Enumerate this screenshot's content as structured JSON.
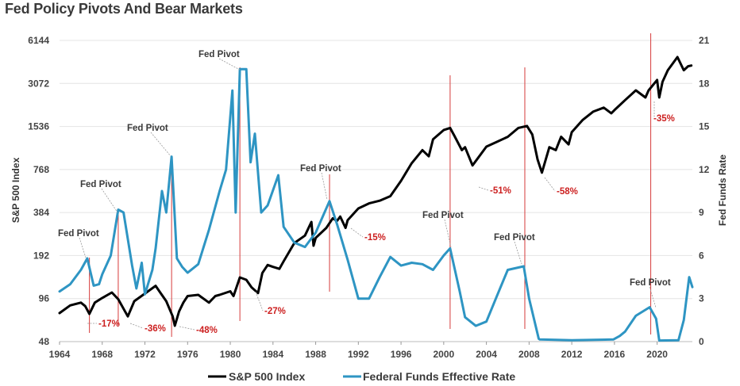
{
  "chart_data": {
    "type": "line",
    "title": "Fed Policy Pivots And Bear Markets",
    "ylabel_left": "S&P 500 Index",
    "ylabel_right": "Fed Funds Rate",
    "x_ticks": [
      "1964",
      "1968",
      "1972",
      "1976",
      "1980",
      "1984",
      "1988",
      "1992",
      "1996",
      "2000",
      "2004",
      "2008",
      "2012",
      "2016",
      "2020"
    ],
    "xlim": [
      1964,
      2023.3
    ],
    "left_ticks": [
      "48",
      "96",
      "192",
      "384",
      "768",
      "1536",
      "3072",
      "6144"
    ],
    "left_scale": "log2",
    "left_range": [
      48,
      6144
    ],
    "right_ticks": [
      "0",
      "3",
      "6",
      "9",
      "12",
      "15",
      "18",
      "21"
    ],
    "right_range": [
      0,
      21
    ],
    "legend": [
      "S&P 500 Index",
      "Federal Funds Effective Rate"
    ],
    "colors": {
      "sp500": "#000000",
      "fed_funds": "#2e95c3",
      "pivot_line": "#d63b3b",
      "pct_text": "#cc1f1f"
    },
    "series": [
      {
        "name": "S&P 500 Index",
        "axis": "left",
        "points": [
          [
            1964,
            76
          ],
          [
            1965,
            86
          ],
          [
            1966,
            90
          ],
          [
            1966.4,
            85
          ],
          [
            1966.8,
            75
          ],
          [
            1967.3,
            90
          ],
          [
            1968,
            97
          ],
          [
            1968.9,
            106
          ],
          [
            1969.5,
            95
          ],
          [
            1970.4,
            72
          ],
          [
            1971,
            92
          ],
          [
            1972,
            104
          ],
          [
            1973,
            118
          ],
          [
            1973.5,
            104
          ],
          [
            1974,
            92
          ],
          [
            1974.6,
            72
          ],
          [
            1974.8,
            62
          ],
          [
            1975.2,
            78
          ],
          [
            1975.6,
            90
          ],
          [
            1976,
            100
          ],
          [
            1977,
            102
          ],
          [
            1978,
            90
          ],
          [
            1978.6,
            100
          ],
          [
            1979,
            102
          ],
          [
            1980,
            108
          ],
          [
            1980.3,
            100
          ],
          [
            1980.9,
            135
          ],
          [
            1981.5,
            130
          ],
          [
            1982,
            115
          ],
          [
            1982.6,
            105
          ],
          [
            1983,
            145
          ],
          [
            1983.5,
            165
          ],
          [
            1984,
            160
          ],
          [
            1984.6,
            155
          ],
          [
            1985,
            175
          ],
          [
            1986,
            235
          ],
          [
            1987,
            265
          ],
          [
            1987.6,
            330
          ],
          [
            1987.8,
            225
          ],
          [
            1988,
            255
          ],
          [
            1989,
            300
          ],
          [
            1989.6,
            350
          ],
          [
            1990,
            335
          ],
          [
            1990.3,
            360
          ],
          [
            1990.8,
            300
          ],
          [
            1991,
            340
          ],
          [
            1992,
            410
          ],
          [
            1993,
            445
          ],
          [
            1994,
            465
          ],
          [
            1995,
            500
          ],
          [
            1996,
            640
          ],
          [
            1997,
            850
          ],
          [
            1998,
            1050
          ],
          [
            1998.6,
            950
          ],
          [
            1999,
            1250
          ],
          [
            2000,
            1450
          ],
          [
            2000.6,
            1500
          ],
          [
            2001,
            1320
          ],
          [
            2001.7,
            1050
          ],
          [
            2002,
            1100
          ],
          [
            2002.7,
            820
          ],
          [
            2003,
            880
          ],
          [
            2004,
            1110
          ],
          [
            2005,
            1200
          ],
          [
            2006,
            1300
          ],
          [
            2007,
            1500
          ],
          [
            2007.8,
            1550
          ],
          [
            2008.3,
            1350
          ],
          [
            2008.8,
            900
          ],
          [
            2009.2,
            730
          ],
          [
            2009.9,
            1100
          ],
          [
            2010.5,
            1050
          ],
          [
            2011,
            1300
          ],
          [
            2011.7,
            1150
          ],
          [
            2012,
            1400
          ],
          [
            2013,
            1700
          ],
          [
            2014,
            1950
          ],
          [
            2015,
            2080
          ],
          [
            2015.7,
            1900
          ],
          [
            2016,
            2000
          ],
          [
            2017,
            2350
          ],
          [
            2018,
            2750
          ],
          [
            2018.9,
            2450
          ],
          [
            2019.2,
            2750
          ],
          [
            2020,
            3250
          ],
          [
            2020.2,
            2450
          ],
          [
            2020.5,
            3150
          ],
          [
            2021,
            3800
          ],
          [
            2021.9,
            4700
          ],
          [
            2022.5,
            3800
          ],
          [
            2022.9,
            4050
          ],
          [
            2023.2,
            4100
          ]
        ]
      },
      {
        "name": "Federal Funds Effective Rate",
        "axis": "right",
        "points": [
          [
            1964,
            3.5
          ],
          [
            1965,
            4.0
          ],
          [
            1966,
            5.0
          ],
          [
            1966.6,
            5.8
          ],
          [
            1967.2,
            3.9
          ],
          [
            1967.7,
            4.0
          ],
          [
            1968,
            4.7
          ],
          [
            1968.8,
            6.0
          ],
          [
            1969.5,
            9.2
          ],
          [
            1970,
            9.0
          ],
          [
            1970.8,
            5.3
          ],
          [
            1971.2,
            3.7
          ],
          [
            1971.7,
            5.5
          ],
          [
            1972,
            3.3
          ],
          [
            1972.7,
            5.0
          ],
          [
            1973,
            6.5
          ],
          [
            1973.6,
            10.5
          ],
          [
            1974,
            9.0
          ],
          [
            1974.5,
            12.9
          ],
          [
            1975,
            5.8
          ],
          [
            1975.5,
            5.2
          ],
          [
            1976,
            4.8
          ],
          [
            1977,
            5.4
          ],
          [
            1978,
            7.8
          ],
          [
            1979,
            10.5
          ],
          [
            1979.6,
            12.0
          ],
          [
            1980.2,
            17.5
          ],
          [
            1980.5,
            9.0
          ],
          [
            1980.9,
            19.0
          ],
          [
            1981.5,
            19.0
          ],
          [
            1981.9,
            12.5
          ],
          [
            1982.3,
            14.5
          ],
          [
            1982.9,
            9.0
          ],
          [
            1983.5,
            9.5
          ],
          [
            1984.5,
            11.6
          ],
          [
            1985,
            8.0
          ],
          [
            1986,
            6.9
          ],
          [
            1987,
            6.6
          ],
          [
            1988,
            7.6
          ],
          [
            1989.3,
            9.8
          ],
          [
            1990,
            8.2
          ],
          [
            1991,
            5.7
          ],
          [
            1992,
            3.0
          ],
          [
            1993,
            3.0
          ],
          [
            1994,
            4.5
          ],
          [
            1995,
            5.9
          ],
          [
            1996,
            5.3
          ],
          [
            1997,
            5.5
          ],
          [
            1998,
            5.4
          ],
          [
            1999,
            5.0
          ],
          [
            2000,
            6.0
          ],
          [
            2000.6,
            6.5
          ],
          [
            2001.5,
            3.5
          ],
          [
            2002,
            1.7
          ],
          [
            2003,
            1.1
          ],
          [
            2004,
            1.4
          ],
          [
            2005,
            3.2
          ],
          [
            2006,
            5.0
          ],
          [
            2007.5,
            5.25
          ],
          [
            2008,
            3.0
          ],
          [
            2008.9,
            0.2
          ],
          [
            2009,
            0.15
          ],
          [
            2012,
            0.1
          ],
          [
            2015.9,
            0.15
          ],
          [
            2016.5,
            0.4
          ],
          [
            2017,
            0.7
          ],
          [
            2018,
            1.8
          ],
          [
            2019.3,
            2.4
          ],
          [
            2019.9,
            1.6
          ],
          [
            2020.2,
            0.08
          ],
          [
            2022,
            0.1
          ],
          [
            2022.5,
            1.5
          ],
          [
            2023,
            4.5
          ],
          [
            2023.3,
            3.8
          ]
        ]
      }
    ],
    "pivots": [
      1966.8,
      1969.5,
      1974.5,
      1980.9,
      1989.3,
      2000.6,
      2007.6,
      2019.4
    ],
    "annotations": [
      {
        "text": "Fed Pivot",
        "kind": "label"
      },
      {
        "text": "Fed Pivot",
        "kind": "label"
      },
      {
        "text": "Fed Pivot",
        "kind": "label"
      },
      {
        "text": "Fed Pivot",
        "kind": "label"
      },
      {
        "text": "Fed Pivot",
        "kind": "label"
      },
      {
        "text": "Fed Pivot",
        "kind": "label"
      },
      {
        "text": "Fed Pivot",
        "kind": "label"
      },
      {
        "text": "Fed Pivot",
        "kind": "label"
      }
    ],
    "drawdowns": [
      "-17%",
      "-36%",
      "-48%",
      "-27%",
      "-15%",
      "-51%",
      "-58%",
      "-35%"
    ]
  }
}
